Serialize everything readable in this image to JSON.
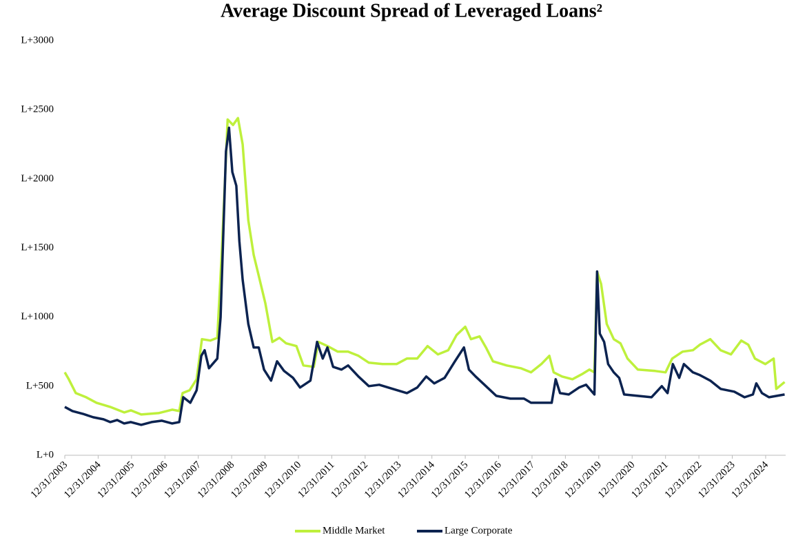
{
  "chart_data": {
    "type": "line",
    "title": "Average Discount Spread of Leveraged Loans²",
    "xlim": [
      2004,
      2025.6
    ],
    "xticks": [
      {
        "value": 2004,
        "label": "12/31/2003"
      },
      {
        "value": 2005,
        "label": "12/31/2004"
      },
      {
        "value": 2006,
        "label": "12/31/2005"
      },
      {
        "value": 2007,
        "label": "12/31/2006"
      },
      {
        "value": 2008,
        "label": "12/31/2007"
      },
      {
        "value": 2009,
        "label": "12/31/2008"
      },
      {
        "value": 2010,
        "label": "12/31/2009"
      },
      {
        "value": 2011,
        "label": "12/31/2010"
      },
      {
        "value": 2012,
        "label": "12/31/2011"
      },
      {
        "value": 2013,
        "label": "12/31/2012"
      },
      {
        "value": 2014,
        "label": "12/31/2013"
      },
      {
        "value": 2015,
        "label": "12/31/2014"
      },
      {
        "value": 2016,
        "label": "12/31/2015"
      },
      {
        "value": 2017,
        "label": "12/31/2016"
      },
      {
        "value": 2018,
        "label": "12/31/2017"
      },
      {
        "value": 2019,
        "label": "12/31/2018"
      },
      {
        "value": 2020,
        "label": "12/31/2019"
      },
      {
        "value": 2021,
        "label": "12/31/2020"
      },
      {
        "value": 2022,
        "label": "12/31/2021"
      },
      {
        "value": 2023,
        "label": "12/31/2022"
      },
      {
        "value": 2024,
        "label": "12/31/2023"
      },
      {
        "value": 2025,
        "label": "12/31/2024"
      }
    ],
    "ylim": [
      0,
      3000
    ],
    "yticks": [
      {
        "value": 0,
        "label": "L+0"
      },
      {
        "value": 500,
        "label": "L+500"
      },
      {
        "value": 1000,
        "label": "L+1000"
      },
      {
        "value": 1500,
        "label": "L+1500"
      },
      {
        "value": 2000,
        "label": "L+2000"
      },
      {
        "value": 2500,
        "label": "L+2500"
      },
      {
        "value": 3000,
        "label": "L+3000"
      }
    ],
    "grid": false,
    "legend": "bottom",
    "series": [
      {
        "name": "Middle Market",
        "color": "#bef03c",
        "x": [
          2004.0,
          2004.12,
          2004.33,
          2004.64,
          2004.95,
          2005.36,
          2005.78,
          2005.98,
          2006.29,
          2006.81,
          2007.22,
          2007.43,
          2007.53,
          2007.74,
          2007.95,
          2008.11,
          2008.36,
          2008.57,
          2008.71,
          2008.88,
          2009.04,
          2009.19,
          2009.33,
          2009.5,
          2009.66,
          2009.81,
          2010.01,
          2010.22,
          2010.43,
          2010.63,
          2010.94,
          2011.15,
          2011.46,
          2011.6,
          2011.87,
          2012.18,
          2012.49,
          2012.8,
          2013.11,
          2013.52,
          2013.94,
          2014.25,
          2014.56,
          2014.87,
          2015.18,
          2015.49,
          2015.74,
          2016.0,
          2016.17,
          2016.43,
          2016.62,
          2016.83,
          2017.24,
          2017.66,
          2017.97,
          2018.28,
          2018.52,
          2018.65,
          2018.9,
          2019.21,
          2019.52,
          2019.72,
          2019.87,
          2019.95,
          2020.07,
          2020.24,
          2020.45,
          2020.65,
          2020.86,
          2021.17,
          2021.69,
          2022.0,
          2022.2,
          2022.51,
          2022.82,
          2023.03,
          2023.34,
          2023.65,
          2023.96,
          2024.27,
          2024.48,
          2024.68,
          2024.99,
          2025.24,
          2025.32,
          2025.57
        ],
        "values": [
          600,
          550,
          450,
          420,
          380,
          350,
          310,
          325,
          295,
          305,
          330,
          320,
          450,
          470,
          550,
          840,
          830,
          850,
          1500,
          2430,
          2390,
          2440,
          2250,
          1700,
          1450,
          1300,
          1100,
          820,
          850,
          810,
          790,
          650,
          640,
          820,
          790,
          750,
          750,
          720,
          670,
          660,
          660,
          700,
          700,
          790,
          730,
          760,
          870,
          930,
          840,
          860,
          780,
          680,
          650,
          630,
          600,
          660,
          720,
          600,
          570,
          550,
          590,
          620,
          600,
          1330,
          1240,
          950,
          840,
          810,
          700,
          620,
          610,
          600,
          700,
          750,
          760,
          800,
          840,
          760,
          730,
          830,
          800,
          700,
          660,
          700,
          480,
          530
        ]
      },
      {
        "name": "Large Corporate",
        "color": "#0c2350",
        "x": [
          2004.0,
          2004.23,
          2004.54,
          2004.85,
          2005.16,
          2005.36,
          2005.57,
          2005.78,
          2005.98,
          2006.29,
          2006.6,
          2006.91,
          2007.22,
          2007.43,
          2007.55,
          2007.76,
          2007.95,
          2008.09,
          2008.19,
          2008.32,
          2008.57,
          2008.67,
          2008.83,
          2008.92,
          2009.02,
          2009.14,
          2009.23,
          2009.33,
          2009.5,
          2009.66,
          2009.81,
          2009.97,
          2010.18,
          2010.36,
          2010.57,
          2010.84,
          2011.05,
          2011.36,
          2011.56,
          2011.73,
          2011.87,
          2012.04,
          2012.29,
          2012.49,
          2012.8,
          2013.11,
          2013.42,
          2013.83,
          2014.25,
          2014.56,
          2014.83,
          2015.07,
          2015.38,
          2015.69,
          2015.96,
          2016.11,
          2016.31,
          2016.62,
          2016.93,
          2017.35,
          2017.76,
          2017.97,
          2018.28,
          2018.59,
          2018.71,
          2018.84,
          2019.1,
          2019.41,
          2019.62,
          2019.87,
          2019.95,
          2020.03,
          2020.16,
          2020.28,
          2020.45,
          2020.61,
          2020.76,
          2021.17,
          2021.58,
          2021.89,
          2022.06,
          2022.22,
          2022.41,
          2022.55,
          2022.82,
          2023.03,
          2023.34,
          2023.65,
          2024.06,
          2024.37,
          2024.62,
          2024.72,
          2024.89,
          2025.1,
          2025.57
        ],
        "values": [
          350,
          320,
          300,
          275,
          260,
          240,
          255,
          230,
          240,
          220,
          240,
          250,
          230,
          240,
          420,
          380,
          470,
          720,
          760,
          630,
          700,
          1000,
          2200,
          2370,
          2050,
          1950,
          1550,
          1270,
          950,
          780,
          780,
          620,
          540,
          680,
          610,
          560,
          490,
          540,
          820,
          700,
          780,
          640,
          620,
          650,
          570,
          500,
          510,
          480,
          450,
          490,
          570,
          520,
          560,
          680,
          780,
          620,
          570,
          500,
          430,
          410,
          410,
          380,
          380,
          380,
          550,
          450,
          440,
          490,
          510,
          440,
          1330,
          880,
          820,
          660,
          600,
          560,
          440,
          430,
          420,
          500,
          450,
          660,
          560,
          660,
          600,
          580,
          540,
          480,
          460,
          420,
          440,
          520,
          450,
          420,
          440
        ]
      }
    ]
  }
}
